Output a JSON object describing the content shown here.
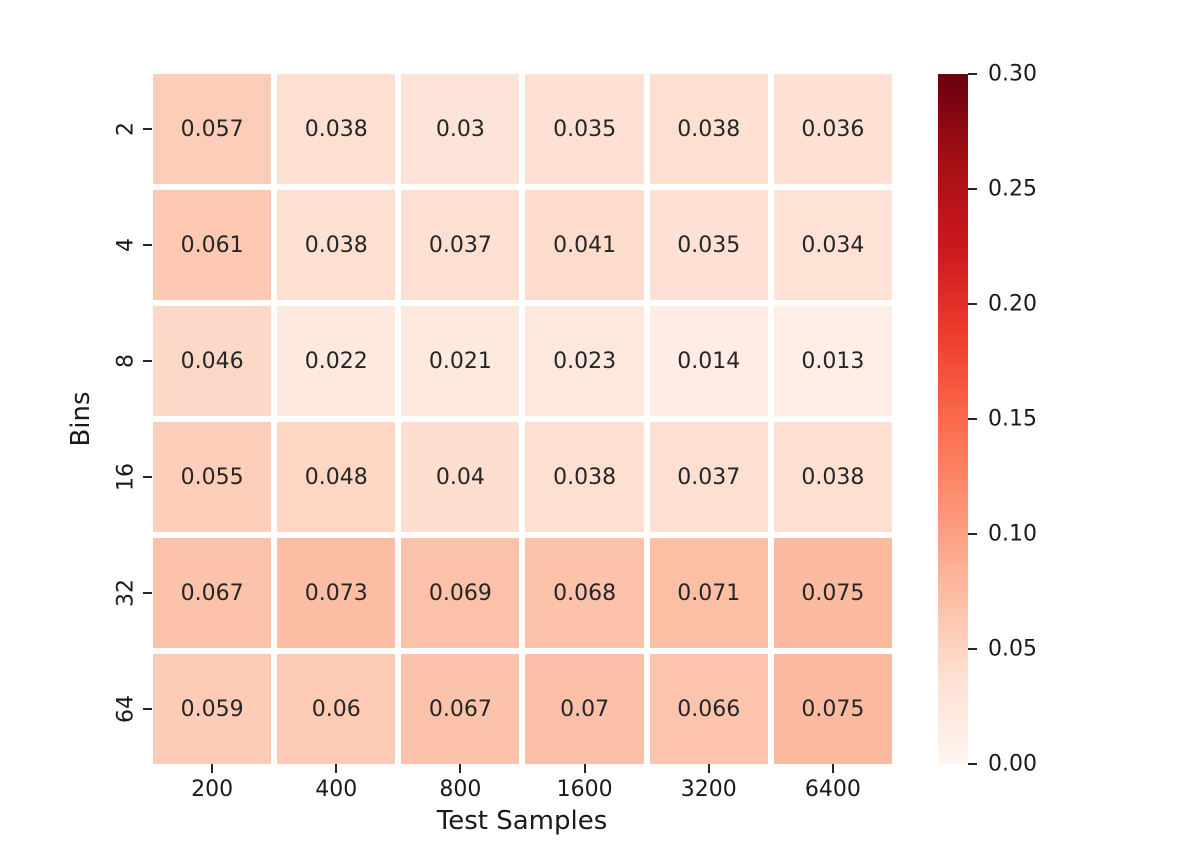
{
  "chart_data": {
    "type": "heatmap",
    "title": "",
    "xlabel": "Test Samples",
    "ylabel": "Bins",
    "x_categories": [
      "200",
      "400",
      "800",
      "1600",
      "3200",
      "6400"
    ],
    "y_categories": [
      "2",
      "4",
      "8",
      "16",
      "32",
      "64"
    ],
    "values": [
      [
        0.057,
        0.038,
        0.03,
        0.035,
        0.038,
        0.036
      ],
      [
        0.061,
        0.038,
        0.037,
        0.041,
        0.035,
        0.034
      ],
      [
        0.046,
        0.022,
        0.021,
        0.023,
        0.014,
        0.013
      ],
      [
        0.055,
        0.048,
        0.04,
        0.038,
        0.037,
        0.038
      ],
      [
        0.067,
        0.073,
        0.069,
        0.068,
        0.071,
        0.075
      ],
      [
        0.059,
        0.06,
        0.067,
        0.07,
        0.066,
        0.075
      ]
    ],
    "vmin": 0,
    "vmax": 0.3,
    "grid_lines": "white",
    "legend_position": "right-colorbar",
    "colorbar": {
      "tick_labels": [
        "0.30",
        "0.25",
        "0.20",
        "0.15",
        "0.10",
        "0.05",
        "0.00"
      ]
    },
    "colormap": {
      "name": "Reds",
      "stops": [
        [
          0.0,
          "#fff5f0"
        ],
        [
          0.125,
          "#fee0d2"
        ],
        [
          0.25,
          "#fcbba1"
        ],
        [
          0.375,
          "#fc9272"
        ],
        [
          0.5,
          "#fb6a4a"
        ],
        [
          0.625,
          "#ef3b2c"
        ],
        [
          0.75,
          "#cb181d"
        ],
        [
          0.875,
          "#a50f15"
        ],
        [
          1.0,
          "#67000d"
        ]
      ]
    },
    "text_color": "#262626"
  }
}
